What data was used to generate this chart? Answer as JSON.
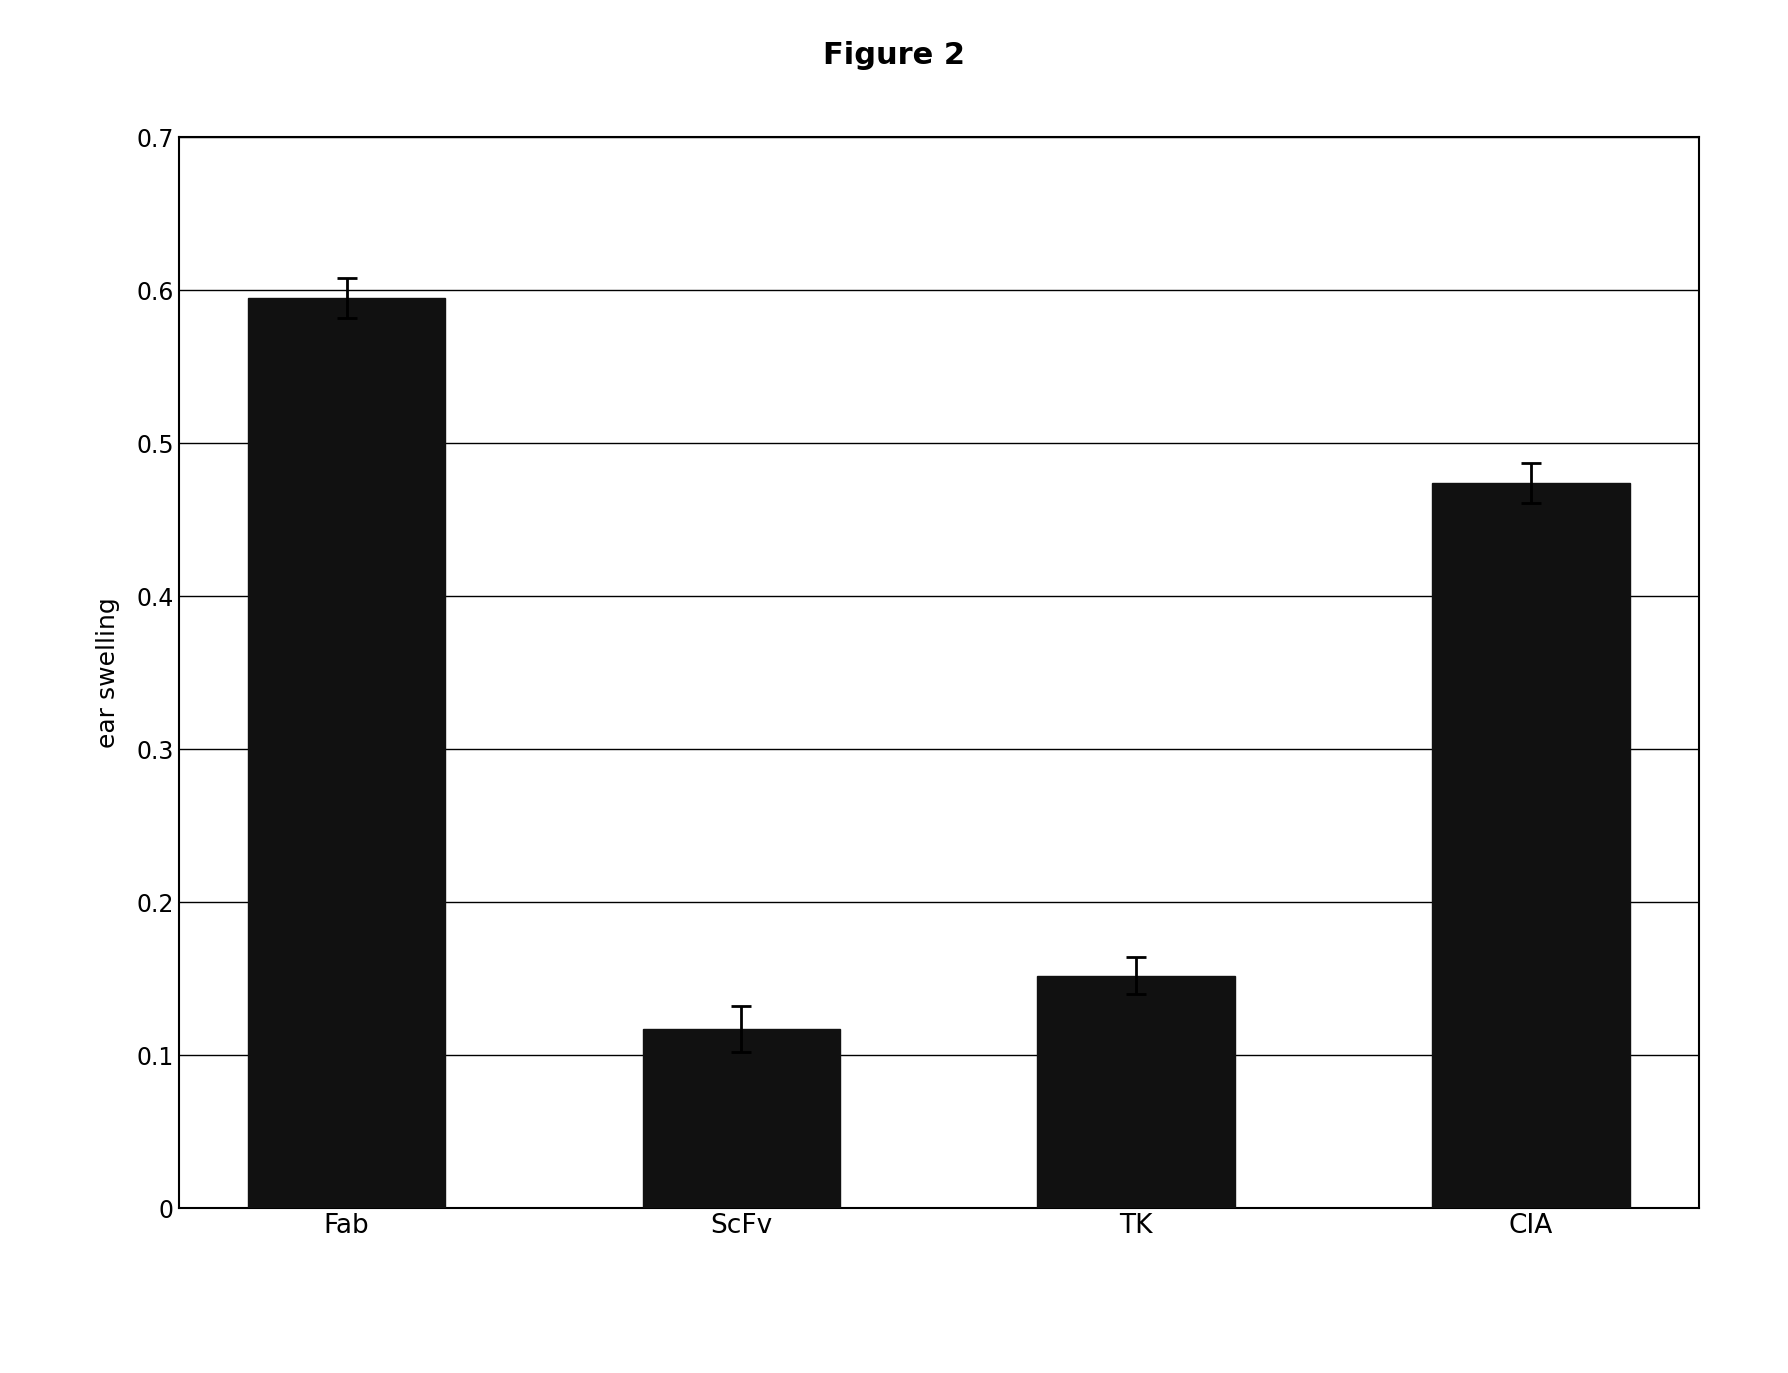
{
  "title": "Figure 2",
  "ylabel": "ear swelling",
  "categories": [
    "Fab",
    "ScFv",
    "TK",
    "CIA"
  ],
  "values": [
    0.595,
    0.117,
    0.152,
    0.474
  ],
  "errors": [
    0.013,
    0.015,
    0.012,
    0.013
  ],
  "bar_color": "#111111",
  "bar_width": 0.5,
  "ylim": [
    0,
    0.7
  ],
  "yticks": [
    0,
    0.1,
    0.2,
    0.3,
    0.4,
    0.5,
    0.6,
    0.7
  ],
  "background_color": "#ffffff",
  "title_fontsize": 22,
  "label_fontsize": 18,
  "tick_fontsize": 17,
  "figsize": [
    17.88,
    13.73
  ],
  "dpi": 100
}
